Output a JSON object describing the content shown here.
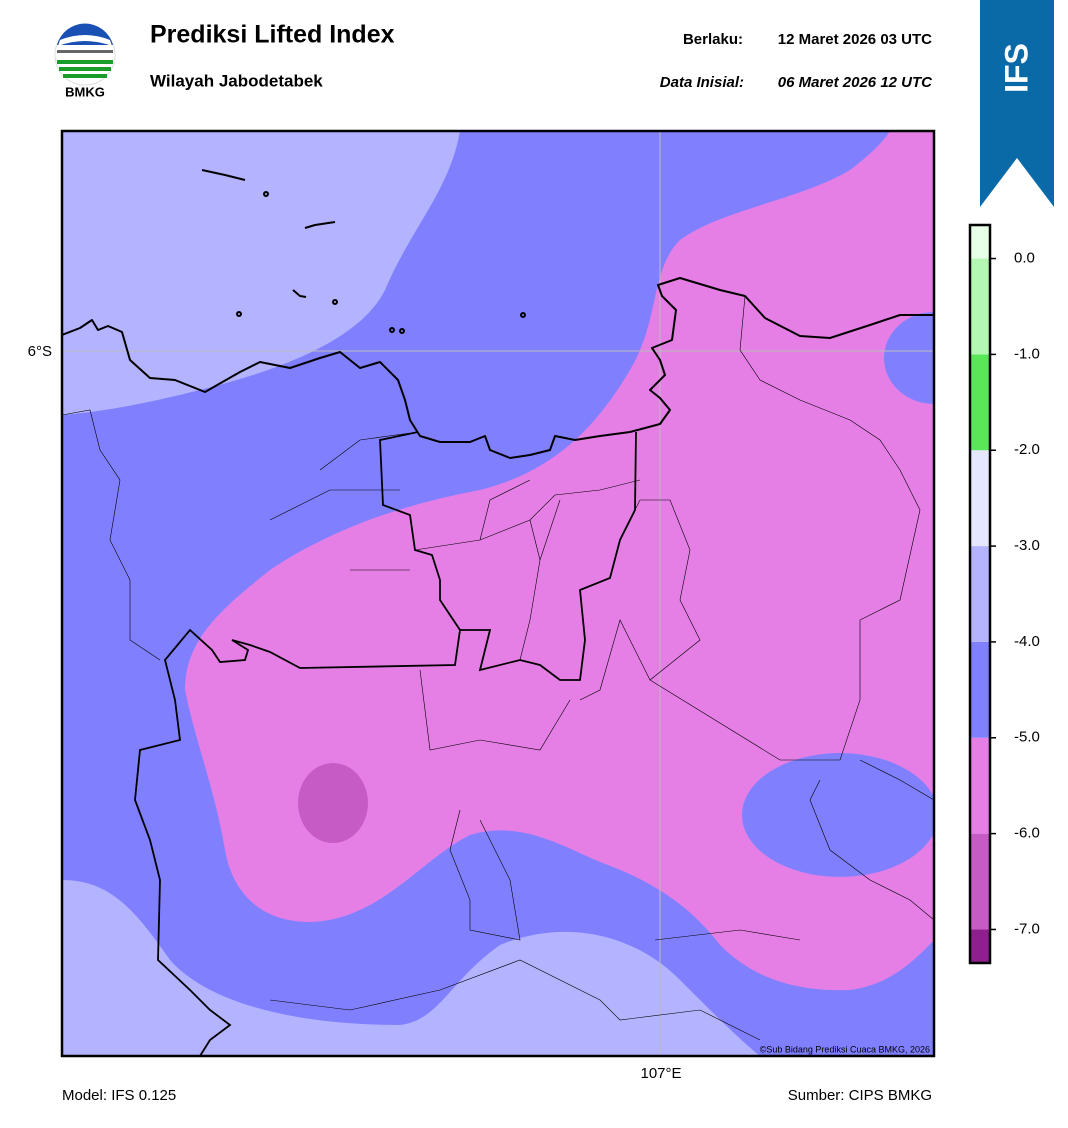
{
  "header": {
    "logo_text": "BMKG",
    "title": "Prediksi Lifted Index",
    "subtitle": "Wilayah Jabodetabek",
    "valid_label": "Berlaku:",
    "valid_time": "12 Maret 2026 03 UTC",
    "init_label": "Data Inisial:",
    "init_time": "06 Maret 2026 12 UTC",
    "badge": "IFS"
  },
  "map": {
    "lat_label": "6°S",
    "lon_label": "107°E",
    "credit": "©Sub Bidang Prediksi Cuaca BMKG, 2026"
  },
  "colorbar": {
    "lim": [
      -7.35,
      0.35
    ],
    "bounds": [
      -7.35,
      -7,
      -6,
      -5,
      -4,
      -3,
      -2,
      -1,
      0,
      0.35
    ],
    "colors": [
      "#8f1f8f",
      "#c65bc6",
      "#e57fe5",
      "#8080ff",
      "#b3b3ff",
      "#e6e6ff",
      "#59e659",
      "#b3f7b3",
      "#e6ffe6"
    ],
    "ticks": [
      {
        "value": 0,
        "label": "0.0"
      },
      {
        "value": -1,
        "label": "-1.0"
      },
      {
        "value": -2,
        "label": "-2.0"
      },
      {
        "value": -3,
        "label": "-3.0"
      },
      {
        "value": -4,
        "label": "-4.0"
      },
      {
        "value": -5,
        "label": "-5.0"
      },
      {
        "value": -6,
        "label": "-6.0"
      },
      {
        "value": -7,
        "label": "-7.0"
      }
    ]
  },
  "footer": {
    "model": "Model: IFS 0.125",
    "source": "Sumber: CIPS BMKG"
  }
}
